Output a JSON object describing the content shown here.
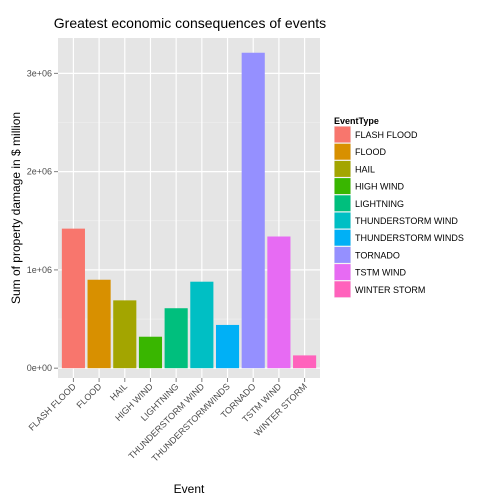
{
  "chart_data": {
    "type": "bar",
    "title": "Greatest economic consequences of events",
    "xlabel": "Event",
    "ylabel": "Sum of property damage in $ million",
    "categories": [
      "FLASH FLOOD",
      "FLOOD",
      "HAIL",
      "HIGH WIND",
      "LIGHTNING",
      "THUNDERSTORM WIND",
      "THUNDERSTORM WINDS",
      "TORNADO",
      "TSTM WIND",
      "WINTER STORM"
    ],
    "tick_labels": [
      "FLASH FLOOD",
      "FLOOD",
      "HAIL",
      "HIGH WIND",
      "LIGHTNING",
      "THUNDERSTORM WIND",
      "THUNDERSTORMWINDS",
      "TORNADO",
      "TSTM WIND",
      "WINTER STORM"
    ],
    "values": [
      1420000,
      900000,
      690000,
      320000,
      610000,
      880000,
      440000,
      3210000,
      1340000,
      130000
    ],
    "colors": [
      "#F8766D",
      "#D89000",
      "#A3A500",
      "#39B600",
      "#00BF7D",
      "#00BFC4",
      "#00B0F6",
      "#9590FF",
      "#E76BF3",
      "#FF62BC"
    ],
    "ylim": [
      -100000,
      3360000
    ],
    "yticks": [
      0,
      1000000,
      2000000,
      3000000
    ],
    "ytick_labels": [
      "0e+00",
      "1e+06",
      "2e+06",
      "3e+06"
    ],
    "grid": true,
    "legend": {
      "title": "EventType",
      "placement": "right",
      "entries": [
        "FLASH FLOOD",
        "FLOOD",
        "HAIL",
        "HIGH WIND",
        "LIGHTNING",
        "THUNDERSTORM WIND",
        "THUNDERSTORM WINDS",
        "TORNADO",
        "TSTM WIND",
        "WINTER STORM"
      ]
    }
  }
}
